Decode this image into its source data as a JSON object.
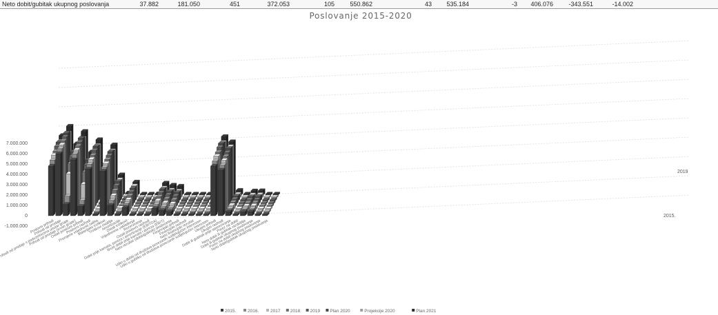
{
  "top_row": {
    "label": "Neto dobit/gubitak ukupnog poslovanja",
    "values": [
      "37.882",
      "181.050",
      "451",
      "372.053",
      "105",
      "550.862",
      "43",
      "535.184",
      "-3",
      "406.076",
      "-343.551",
      "-14.002"
    ]
  },
  "chart_data": {
    "type": "bar",
    "subtype": "3d-clustered-column",
    "title": "Poslovanje 2015-2020",
    "y_ticks": [
      "-1.000.000",
      "0",
      "1.000.000",
      "2.000.000",
      "3.000.000",
      "4.000.000",
      "5.000.000",
      "6.000.000",
      "7.000.000"
    ],
    "ylim": [
      -1000000,
      7000000
    ],
    "depth_labels": [
      "2015.",
      "2019"
    ],
    "legend_position": "bottom",
    "categories": [
      "Poslovni prihodi",
      "Prihodi od prodaje",
      "Prihodi od prodaje s poduzetnicima unutar grupe",
      "Prihodi od prodaje (izvan grupe)",
      "Ostali poslovni prihodi",
      "Poslovni rashodi",
      "Promjene vrijednosti zaliha",
      "Materijalni troškovi",
      "Troškovi osoblja",
      "Amortizacija",
      "Ostali troškovi",
      "Vrijednosna usklađenja",
      "Rezerviranja",
      "Ostali poslovni rashodi",
      "Dobit prije kamata, poreza i amortizacije (EBITDA)",
      "Bruto dobit prije kamata i poreza (EBIT)",
      "Neto rezultat (dobit/gubitak) poslovanja",
      "Financijski prihodi",
      "Financijski rashodi",
      "Neto financijski rezultat",
      "Udio u dobiti od društava povezanih sudjelujućim interesom",
      "Udio u gubitku od društava povezanih sudjelujućim interesom",
      "Ukupni prihodi",
      "Ukupni rashodi",
      "Dobit ili gubitak prije oporezivanja",
      "Porez na dobit",
      "Neto dobit ili gubitak razdoblja",
      "Dobit ili gubitak ukupnog poslovanja",
      "Porez na dobit ukupnog poslovanja",
      "Neto dobit/gubitak ukupnog poslovanja"
    ],
    "series": [
      {
        "name": "2015.",
        "color": "#3a3a3a",
        "values": [
          4800000,
          6000000,
          1100000,
          5400000,
          900000,
          4500000,
          0,
          4300000,
          1000000,
          160000,
          800000,
          20000,
          0,
          60000,
          700000,
          500000,
          400000,
          30000,
          20000,
          10000,
          0,
          0,
          4800000,
          4400000,
          390000,
          30000,
          360000,
          380000,
          30000,
          40000
        ]
      },
      {
        "name": "2016.",
        "color": "#8a8a8a",
        "values": [
          5100000,
          6200000,
          1600000,
          5700000,
          1200000,
          4700000,
          0,
          4400000,
          1200000,
          180000,
          900000,
          30000,
          0,
          80000,
          800000,
          600000,
          500000,
          40000,
          30000,
          10000,
          0,
          0,
          5000000,
          4600000,
          420000,
          40000,
          380000,
          400000,
          40000,
          45000
        ]
      },
      {
        "name": "2017",
        "color": "#b5b5b5",
        "values": [
          5300000,
          6300000,
          3500000,
          5800000,
          2500000,
          4900000,
          0,
          4500000,
          1400000,
          200000,
          1000000,
          40000,
          0,
          100000,
          900000,
          700000,
          600000,
          50000,
          40000,
          10000,
          0,
          0,
          5200000,
          4800000,
          450000,
          50000,
          400000,
          420000,
          50000,
          50000
        ]
      },
      {
        "name": "2018",
        "color": "#6e6e6e",
        "values": [
          5400000,
          6400000,
          4200000,
          5900000,
          3400000,
          5000000,
          0,
          4600000,
          1600000,
          210000,
          1100000,
          50000,
          0,
          120000,
          1000000,
          800000,
          700000,
          60000,
          50000,
          10000,
          0,
          0,
          5300000,
          4900000,
          460000,
          60000,
          410000,
          430000,
          60000,
          55000
        ]
      },
      {
        "name": "2019",
        "color": "#5a5a5a",
        "values": [
          5600000,
          6500000,
          4600000,
          6000000,
          3800000,
          5200000,
          0,
          4700000,
          1800000,
          220000,
          1200000,
          60000,
          0,
          140000,
          1100000,
          900000,
          800000,
          70000,
          60000,
          10000,
          0,
          0,
          5500000,
          5000000,
          480000,
          70000,
          420000,
          440000,
          70000,
          60000
        ]
      },
      {
        "name": "Plan 2020",
        "color": "#4a4a4a",
        "values": [
          5700000,
          6600000,
          4800000,
          6100000,
          4000000,
          5300000,
          0,
          4800000,
          1900000,
          230000,
          1250000,
          60000,
          0,
          150000,
          1150000,
          950000,
          850000,
          70000,
          60000,
          10000,
          0,
          0,
          5600000,
          5100000,
          490000,
          70000,
          430000,
          450000,
          70000,
          60000
        ]
      },
      {
        "name": "Projekcije 2020",
        "color": "#9e9e9e",
        "values": [
          5500000,
          6300000,
          4500000,
          5800000,
          3700000,
          5100000,
          0,
          4600000,
          1800000,
          220000,
          1200000,
          60000,
          0,
          140000,
          1000000,
          800000,
          700000,
          60000,
          60000,
          0,
          0,
          0,
          5400000,
          5000000,
          400000,
          60000,
          340000,
          360000,
          60000,
          50000
        ]
      },
      {
        "name": "Plan 2021",
        "color": "#2b2b2b",
        "values": [
          5800000,
          6700000,
          5000000,
          6200000,
          4200000,
          5400000,
          0,
          4900000,
          2000000,
          240000,
          1300000,
          70000,
          0,
          160000,
          1200000,
          1000000,
          900000,
          80000,
          70000,
          10000,
          0,
          0,
          5700000,
          5200000,
          500000,
          80000,
          440000,
          460000,
          80000,
          70000
        ]
      }
    ]
  }
}
